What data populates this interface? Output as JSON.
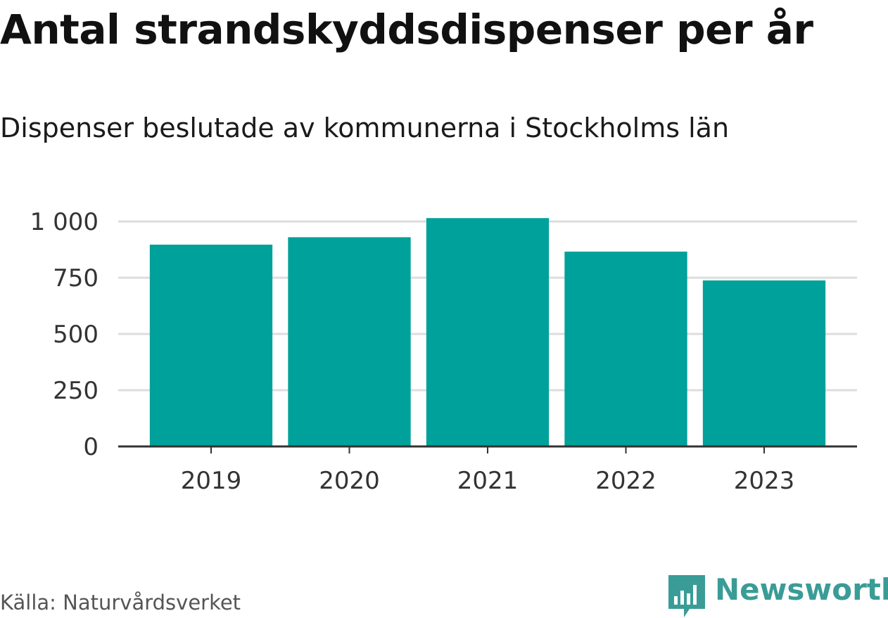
{
  "chart_data": {
    "type": "bar",
    "title": "Antal strandskyddsdispenser per år",
    "subtitle": "Dispenser beslutade av kommunerna i Stockholms län",
    "categories": [
      "2019",
      "2020",
      "2021",
      "2022",
      "2023"
    ],
    "values": [
      897,
      930,
      1015,
      866,
      738
    ],
    "yticks": [
      0,
      250,
      500,
      750,
      1000
    ],
    "ytick_labels": [
      "0",
      "250",
      "500",
      "750",
      "1 000"
    ],
    "ylim": [
      0,
      1000
    ],
    "xlabel": "",
    "ylabel": "",
    "grid": true,
    "bar_color": "#00a19a",
    "grid_color": "#dddddd",
    "axis_color": "#333333"
  },
  "footer": {
    "source": "Källa: Naturvårdsverket",
    "brand": "Newsworthy",
    "brand_color": "#3a9c96",
    "brand_icon": "newsworthy-logo-icon"
  }
}
